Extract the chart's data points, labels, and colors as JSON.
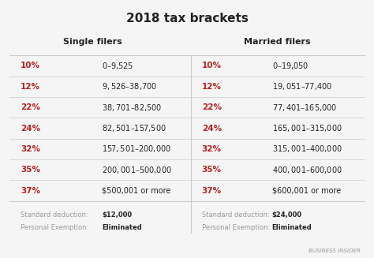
{
  "title": "2018 tax brackets",
  "bg_color": "#f5f5f5",
  "title_color": "#222222",
  "red_color": "#b22222",
  "dark_color": "#222222",
  "gray_color": "#999999",
  "line_color": "#cccccc",
  "col_headers": [
    "Single filers",
    "Married filers"
  ],
  "brackets": [
    {
      "rate": "10%",
      "single": "$0–$9,525",
      "married": "$0–$19,050"
    },
    {
      "rate": "12%",
      "single": "$9,526–$38,700",
      "married": "$19,051–$77,400"
    },
    {
      "rate": "22%",
      "single": "$38,701–$82,500",
      "married": "$77,401–$165,000"
    },
    {
      "rate": "24%",
      "single": "$82,501–$157,500",
      "married": "$165,001–$315,000"
    },
    {
      "rate": "32%",
      "single": "$157,501–$200,000",
      "married": "$315,001–$400,000"
    },
    {
      "rate": "35%",
      "single": "$200,001–$500,000",
      "married": "$400,001–$600,000"
    },
    {
      "rate": "37%",
      "single": "$500,001 or more",
      "married": "$600,001 or more"
    }
  ],
  "footer_single_label1": "Standard deduction:",
  "footer_single_val1": "$12,000",
  "footer_single_label2": "Personal Exemption:",
  "footer_single_val2": "Eliminated",
  "footer_married_label1": "Standard deduction:",
  "footer_married_val1": "$24,000",
  "footer_married_label2": "Personal Exemption:",
  "footer_married_val2": "Eliminated",
  "watermark": "BUSINESS INSIDER"
}
